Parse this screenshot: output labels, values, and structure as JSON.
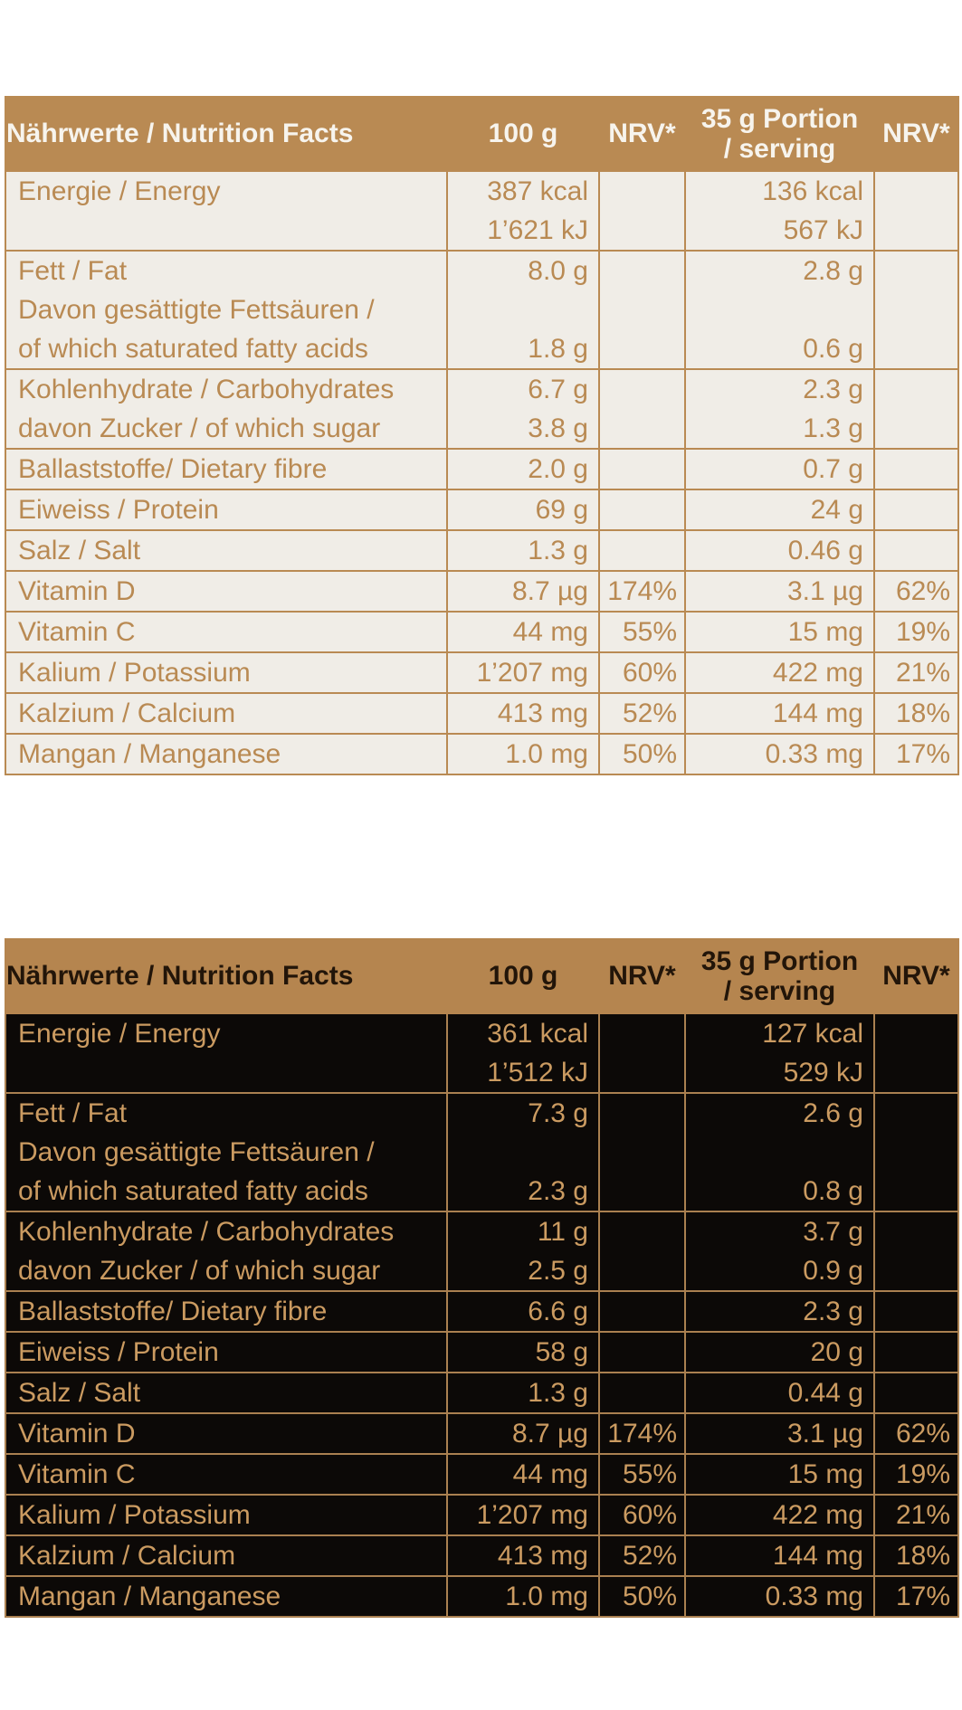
{
  "tables": [
    {
      "name": "nutrition-table-light",
      "theme": "light",
      "colors": {
        "header_bg": "#b98a53",
        "header_text": "#f7f4ed",
        "body_bg": "#f0ede7",
        "body_text": "#b98a53",
        "border": "#b98a53"
      },
      "header": {
        "nutrition_facts": "Nährwerte / Nutrition Facts",
        "per_100g": "100 g",
        "nrv_100g": "NRV*",
        "portion_line1": "35 g Portion",
        "portion_line2": "/ serving",
        "nrv_portion": "NRV*"
      },
      "rows": [
        {
          "lines": 2,
          "label": [
            "Energie / Energy"
          ],
          "per100": [
            "387 kcal",
            "1’621 kJ"
          ],
          "nrv100": [],
          "portion": [
            "136 kcal",
            "567 kJ"
          ],
          "nrvp": []
        },
        {
          "lines": 3,
          "label": [
            "Fett / Fat",
            "Davon gesättigte Fettsäuren /",
            "of which saturated fatty acids"
          ],
          "per100": [
            "8.0 g",
            "",
            "1.8 g"
          ],
          "nrv100": [],
          "portion": [
            "2.8 g",
            "",
            "0.6 g"
          ],
          "nrvp": []
        },
        {
          "lines": 2,
          "label": [
            "Kohlenhydrate / Carbohydrates",
            "davon Zucker / of which sugar"
          ],
          "per100": [
            "6.7 g",
            "3.8 g"
          ],
          "nrv100": [],
          "portion": [
            "2.3 g",
            "1.3 g"
          ],
          "nrvp": []
        },
        {
          "lines": 1,
          "label": [
            "Ballaststoffe/ Dietary fibre"
          ],
          "per100": [
            "2.0 g"
          ],
          "nrv100": [],
          "portion": [
            "0.7 g"
          ],
          "nrvp": []
        },
        {
          "lines": 1,
          "label": [
            "Eiweiss / Protein"
          ],
          "per100": [
            "69 g"
          ],
          "nrv100": [],
          "portion": [
            "24 g"
          ],
          "nrvp": []
        },
        {
          "lines": 1,
          "label": [
            "Salz / Salt"
          ],
          "per100": [
            "1.3 g"
          ],
          "nrv100": [],
          "portion": [
            "0.46 g"
          ],
          "nrvp": []
        },
        {
          "lines": 1,
          "label": [
            "Vitamin D"
          ],
          "per100": [
            "8.7 µg"
          ],
          "nrv100": [
            "174%"
          ],
          "portion": [
            "3.1 µg"
          ],
          "nrvp": [
            "62%"
          ]
        },
        {
          "lines": 1,
          "label": [
            "Vitamin C"
          ],
          "per100": [
            "44 mg"
          ],
          "nrv100": [
            "55%"
          ],
          "portion": [
            "15 mg"
          ],
          "nrvp": [
            "19%"
          ]
        },
        {
          "lines": 1,
          "label": [
            "Kalium / Potassium"
          ],
          "per100": [
            "1’207 mg"
          ],
          "nrv100": [
            "60%"
          ],
          "portion": [
            "422 mg"
          ],
          "nrvp": [
            "21%"
          ]
        },
        {
          "lines": 1,
          "label": [
            "Kalzium / Calcium"
          ],
          "per100": [
            "413 mg"
          ],
          "nrv100": [
            "52%"
          ],
          "portion": [
            "144 mg"
          ],
          "nrvp": [
            "18%"
          ]
        },
        {
          "lines": 1,
          "label": [
            "Mangan / Manganese"
          ],
          "per100": [
            "1.0 mg"
          ],
          "nrv100": [
            "50%"
          ],
          "portion": [
            "0.33 mg"
          ],
          "nrvp": [
            "17%"
          ]
        }
      ]
    },
    {
      "name": "nutrition-table-dark",
      "theme": "dark",
      "colors": {
        "header_bg": "#b5854f",
        "header_text": "#221509",
        "body_bg": "#0c0907",
        "body_text": "#cb9b61",
        "border": "#aa8050"
      },
      "header": {
        "nutrition_facts": "Nährwerte / Nutrition Facts",
        "per_100g": "100 g",
        "nrv_100g": "NRV*",
        "portion_line1": "35 g Portion",
        "portion_line2": "/ serving",
        "nrv_portion": "NRV*"
      },
      "rows": [
        {
          "lines": 2,
          "label": [
            "Energie / Energy"
          ],
          "per100": [
            "361 kcal",
            "1’512 kJ"
          ],
          "nrv100": [],
          "portion": [
            "127 kcal",
            "529 kJ"
          ],
          "nrvp": []
        },
        {
          "lines": 3,
          "label": [
            "Fett / Fat",
            "Davon gesättigte Fettsäuren /",
            "of which saturated fatty acids"
          ],
          "per100": [
            "7.3 g",
            "",
            "2.3 g"
          ],
          "nrv100": [],
          "portion": [
            "2.6 g",
            "",
            "0.8 g"
          ],
          "nrvp": []
        },
        {
          "lines": 2,
          "label": [
            "Kohlenhydrate / Carbohydrates",
            "davon Zucker / of which sugar"
          ],
          "per100": [
            "11 g",
            "2.5 g"
          ],
          "nrv100": [],
          "portion": [
            "3.7 g",
            "0.9 g"
          ],
          "nrvp": []
        },
        {
          "lines": 1,
          "label": [
            "Ballaststoffe/ Dietary fibre"
          ],
          "per100": [
            "6.6 g"
          ],
          "nrv100": [],
          "portion": [
            "2.3 g"
          ],
          "nrvp": []
        },
        {
          "lines": 1,
          "label": [
            "Eiweiss / Protein"
          ],
          "per100": [
            "58 g"
          ],
          "nrv100": [],
          "portion": [
            "20 g"
          ],
          "nrvp": []
        },
        {
          "lines": 1,
          "label": [
            "Salz / Salt"
          ],
          "per100": [
            "1.3 g"
          ],
          "nrv100": [],
          "portion": [
            "0.44 g"
          ],
          "nrvp": []
        },
        {
          "lines": 1,
          "label": [
            "Vitamin D"
          ],
          "per100": [
            "8.7 µg"
          ],
          "nrv100": [
            "174%"
          ],
          "portion": [
            "3.1 µg"
          ],
          "nrvp": [
            "62%"
          ]
        },
        {
          "lines": 1,
          "label": [
            "Vitamin C"
          ],
          "per100": [
            "44 mg"
          ],
          "nrv100": [
            "55%"
          ],
          "portion": [
            "15 mg"
          ],
          "nrvp": [
            "19%"
          ]
        },
        {
          "lines": 1,
          "label": [
            "Kalium / Potassium"
          ],
          "per100": [
            "1’207 mg"
          ],
          "nrv100": [
            "60%"
          ],
          "portion": [
            "422 mg"
          ],
          "nrvp": [
            "21%"
          ]
        },
        {
          "lines": 1,
          "label": [
            "Kalzium / Calcium"
          ],
          "per100": [
            "413 mg"
          ],
          "nrv100": [
            "52%"
          ],
          "portion": [
            "144 mg"
          ],
          "nrvp": [
            "18%"
          ]
        },
        {
          "lines": 1,
          "label": [
            "Mangan / Manganese"
          ],
          "per100": [
            "1.0 mg"
          ],
          "nrv100": [
            "50%"
          ],
          "portion": [
            "0.33 mg"
          ],
          "nrvp": [
            "17%"
          ]
        }
      ]
    }
  ]
}
